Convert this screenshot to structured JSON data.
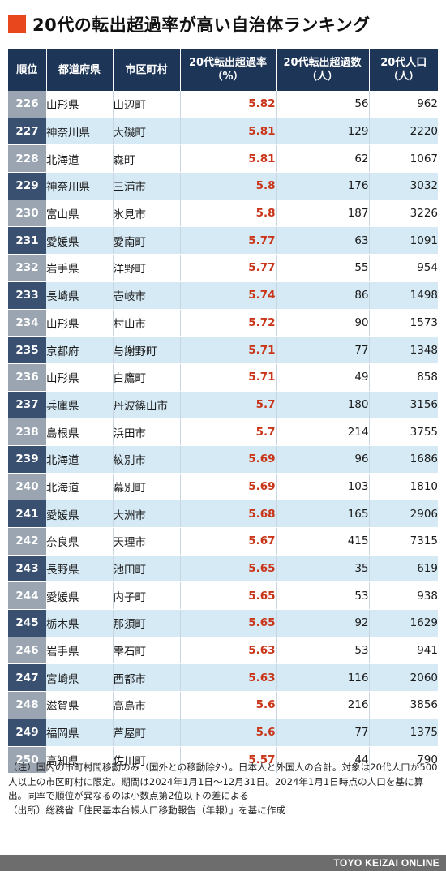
{
  "title": "20代の転出超過率が高い自治体ランキング",
  "columns": {
    "rank": "順位",
    "pref": "都道府県",
    "city": "市区町村",
    "rate_line1": "20代転出超過率",
    "rate_line2": "（%）",
    "excess_line1": "20代転出超過数",
    "excess_line2": "（人）",
    "pop_line1": "20代人口",
    "pop_line2": "（人）"
  },
  "rows": [
    {
      "rank": "226",
      "pref": "山形県",
      "city": "山辺町",
      "rate": "5.82",
      "excess": "56",
      "pop": "962"
    },
    {
      "rank": "227",
      "pref": "神奈川県",
      "city": "大磯町",
      "rate": "5.81",
      "excess": "129",
      "pop": "2220"
    },
    {
      "rank": "228",
      "pref": "北海道",
      "city": "森町",
      "rate": "5.81",
      "excess": "62",
      "pop": "1067"
    },
    {
      "rank": "229",
      "pref": "神奈川県",
      "city": "三浦市",
      "rate": "5.8",
      "excess": "176",
      "pop": "3032"
    },
    {
      "rank": "230",
      "pref": "富山県",
      "city": "氷見市",
      "rate": "5.8",
      "excess": "187",
      "pop": "3226"
    },
    {
      "rank": "231",
      "pref": "愛媛県",
      "city": "愛南町",
      "rate": "5.77",
      "excess": "63",
      "pop": "1091"
    },
    {
      "rank": "232",
      "pref": "岩手県",
      "city": "洋野町",
      "rate": "5.77",
      "excess": "55",
      "pop": "954"
    },
    {
      "rank": "233",
      "pref": "長崎県",
      "city": "壱岐市",
      "rate": "5.74",
      "excess": "86",
      "pop": "1498"
    },
    {
      "rank": "234",
      "pref": "山形県",
      "city": "村山市",
      "rate": "5.72",
      "excess": "90",
      "pop": "1573"
    },
    {
      "rank": "235",
      "pref": "京都府",
      "city": "与謝野町",
      "rate": "5.71",
      "excess": "77",
      "pop": "1348"
    },
    {
      "rank": "236",
      "pref": "山形県",
      "city": "白鷹町",
      "rate": "5.71",
      "excess": "49",
      "pop": "858"
    },
    {
      "rank": "237",
      "pref": "兵庫県",
      "city": "丹波篠山市",
      "rate": "5.7",
      "excess": "180",
      "pop": "3156"
    },
    {
      "rank": "238",
      "pref": "島根県",
      "city": "浜田市",
      "rate": "5.7",
      "excess": "214",
      "pop": "3755"
    },
    {
      "rank": "239",
      "pref": "北海道",
      "city": "紋別市",
      "rate": "5.69",
      "excess": "96",
      "pop": "1686"
    },
    {
      "rank": "240",
      "pref": "北海道",
      "city": "幕別町",
      "rate": "5.69",
      "excess": "103",
      "pop": "1810"
    },
    {
      "rank": "241",
      "pref": "愛媛県",
      "city": "大洲市",
      "rate": "5.68",
      "excess": "165",
      "pop": "2906"
    },
    {
      "rank": "242",
      "pref": "奈良県",
      "city": "天理市",
      "rate": "5.67",
      "excess": "415",
      "pop": "7315"
    },
    {
      "rank": "243",
      "pref": "長野県",
      "city": "池田町",
      "rate": "5.65",
      "excess": "35",
      "pop": "619"
    },
    {
      "rank": "244",
      "pref": "愛媛県",
      "city": "内子町",
      "rate": "5.65",
      "excess": "53",
      "pop": "938"
    },
    {
      "rank": "245",
      "pref": "栃木県",
      "city": "那須町",
      "rate": "5.65",
      "excess": "92",
      "pop": "1629"
    },
    {
      "rank": "246",
      "pref": "岩手県",
      "city": "雫石町",
      "rate": "5.63",
      "excess": "53",
      "pop": "941"
    },
    {
      "rank": "247",
      "pref": "宮崎県",
      "city": "西都市",
      "rate": "5.63",
      "excess": "116",
      "pop": "2060"
    },
    {
      "rank": "248",
      "pref": "滋賀県",
      "city": "高島市",
      "rate": "5.6",
      "excess": "216",
      "pop": "3856"
    },
    {
      "rank": "249",
      "pref": "福岡県",
      "city": "芦屋町",
      "rate": "5.6",
      "excess": "77",
      "pop": "1375"
    },
    {
      "rank": "250",
      "pref": "高知県",
      "city": "佐川町",
      "rate": "5.57",
      "excess": "44",
      "pop": "790"
    }
  ],
  "notes": {
    "note": "（注）国内の市町村間移動のみ（国外との移動除外）。日本人と外国人の合計。対象は20代人口が500人以上の市区町村に限定。期間は2024年1月1日～12月31日。2024年1月1日時点の人口を基に算出。同率で順位が異なるのは小数点第2位以下の差による",
    "source": "（出所）総務省「住民基本台帳人口移動報告（年報）」を基に作成"
  },
  "footer": {
    "brand": "TOYO KEIZAI ONLINE"
  },
  "colors": {
    "accent": "#e8471d",
    "header_bg": "#1d3557",
    "row_alt_bg": "#d6eaf5",
    "rate_text": "#c9361a",
    "footer_bg": "#6d6d6d"
  }
}
